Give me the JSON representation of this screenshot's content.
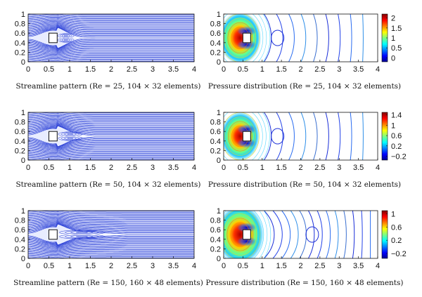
{
  "chart_data": [
    {
      "type": "contour",
      "field": "streamlines",
      "caption": "Streamline pattern (Re = 25, 104 × 32 elements)",
      "re": 25,
      "xlim": [
        0,
        4
      ],
      "ylim": [
        0,
        1
      ],
      "xticks": [
        "0",
        "0.5",
        "1",
        "1.5",
        "2",
        "2.5",
        "3",
        "3.5",
        "4"
      ],
      "yticks": [
        "0",
        "0.2",
        "0.4",
        "0.6",
        "0.8",
        "1"
      ],
      "obstacle": {
        "x": [
          0.5,
          0.7
        ],
        "y": [
          0.4,
          0.6
        ]
      },
      "wake_length": 0.6,
      "line_color": "#2a3fd6"
    },
    {
      "type": "contour",
      "field": "pressure",
      "caption": "Pressure distribution (Re = 25, 104 × 32 elements)",
      "re": 25,
      "xlim": [
        0,
        4
      ],
      "ylim": [
        0,
        1
      ],
      "xticks": [
        "0",
        "0.5",
        "1",
        "1.5",
        "2",
        "2.5",
        "3",
        "3.5",
        "4"
      ],
      "yticks": [
        "0",
        "0.2",
        "0.4",
        "0.6",
        "0.8",
        "1"
      ],
      "obstacle": {
        "x": [
          0.5,
          0.7
        ],
        "y": [
          0.4,
          0.6
        ]
      },
      "colorbar_ticks": [
        "2",
        "1.5",
        "1",
        "0.5",
        "0"
      ],
      "clim": [
        -0.2,
        2.2
      ]
    },
    {
      "type": "contour",
      "field": "streamlines",
      "caption": "Streamline pattern (Re = 50, 104 × 32 elements)",
      "re": 50,
      "xlim": [
        0,
        4
      ],
      "ylim": [
        0,
        1
      ],
      "xticks": [
        "0",
        "0.5",
        "1",
        "1.5",
        "2",
        "2.5",
        "3",
        "3.5",
        "4"
      ],
      "yticks": [
        "0",
        "0.2",
        "0.4",
        "0.6",
        "0.8",
        "1"
      ],
      "obstacle": {
        "x": [
          0.5,
          0.7
        ],
        "y": [
          0.4,
          0.6
        ]
      },
      "wake_length": 0.9,
      "line_color": "#2a3fd6"
    },
    {
      "type": "contour",
      "field": "pressure",
      "caption": "Pressure distribution (Re = 50, 104 × 32 elements)",
      "re": 50,
      "xlim": [
        0,
        4
      ],
      "ylim": [
        0,
        1
      ],
      "xticks": [
        "0",
        "0.5",
        "1",
        "1.5",
        "2",
        "2.5",
        "3",
        "3.5",
        "4"
      ],
      "yticks": [
        "0",
        "0.2",
        "0.4",
        "0.6",
        "0.8",
        "1"
      ],
      "obstacle": {
        "x": [
          0.5,
          0.7
        ],
        "y": [
          0.4,
          0.6
        ]
      },
      "colorbar_ticks": [
        "1.4",
        "1",
        "0.6",
        "0.2",
        "−0.2"
      ],
      "clim": [
        -0.35,
        1.5
      ]
    },
    {
      "type": "contour",
      "field": "streamlines",
      "caption": "Streamline pattern (Re = 150, 160 × 48 elements)",
      "re": 150,
      "xlim": [
        0,
        4
      ],
      "ylim": [
        0,
        1
      ],
      "xticks": [
        "0",
        "0.5",
        "1",
        "1.5",
        "2",
        "2.5",
        "3",
        "3.5",
        "4"
      ],
      "yticks": [
        "0",
        "0.2",
        "0.4",
        "0.6",
        "0.8",
        "1"
      ],
      "obstacle": {
        "x": [
          0.5,
          0.7
        ],
        "y": [
          0.4,
          0.6
        ]
      },
      "wake_length": 1.7,
      "line_color": "#2a3fd6"
    },
    {
      "type": "contour",
      "field": "pressure",
      "caption": "Pressure distribution (Re = 150, 160 × 48 elements)",
      "re": 150,
      "xlim": [
        0,
        4
      ],
      "ylim": [
        0,
        1
      ],
      "xticks": [
        "0",
        "0.5",
        "1",
        "1.5",
        "2",
        "2.5",
        "3",
        "3.5",
        "4"
      ],
      "yticks": [
        "0",
        "0.2",
        "0.4",
        "0.6",
        "0.8",
        "1"
      ],
      "obstacle": {
        "x": [
          0.5,
          0.7
        ],
        "y": [
          0.4,
          0.6
        ]
      },
      "colorbar_ticks": [
        "1",
        "0.6",
        "0.2",
        "−0.2"
      ],
      "clim": [
        -0.35,
        1.1
      ]
    }
  ]
}
